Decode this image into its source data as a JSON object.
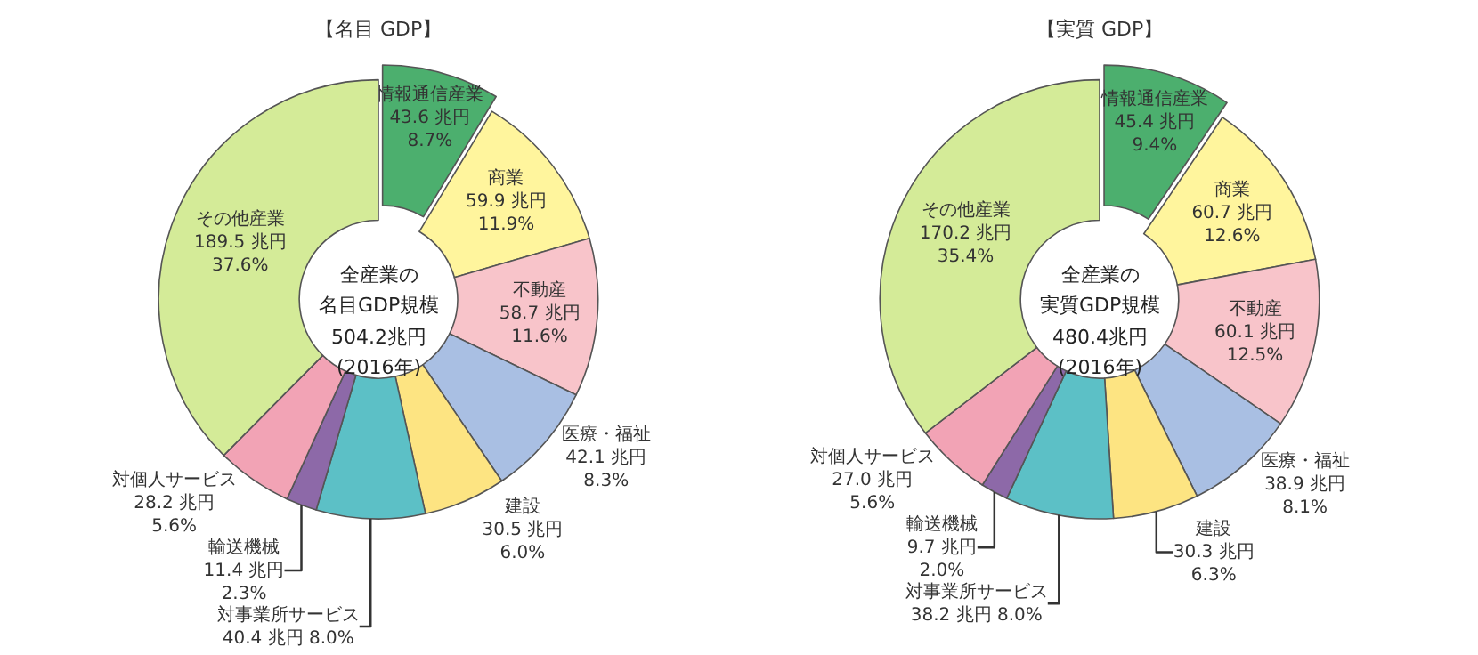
{
  "chart_data": [
    {
      "type": "donut",
      "title": "【名目 GDP】",
      "annotations": [
        "全産業の",
        "名目GDP規模",
        "504.2兆円",
        "(2016年)"
      ],
      "categories": [
        "情報通信産業",
        "商業",
        "不動産",
        "医療・福祉",
        "建設",
        "対事業所サービス",
        "輸送機械",
        "対個人サービス",
        "その他産業"
      ],
      "values": [
        43.6,
        59.9,
        58.7,
        42.1,
        30.5,
        40.4,
        11.4,
        28.2,
        189.5
      ],
      "value_labels": [
        "43.6 兆円\n8.7%",
        "59.9 兆円\n11.9%",
        "58.7 兆円\n11.6%",
        "42.1 兆円\n8.3%",
        "30.5 兆円\n6.0%",
        "40.4 兆円 8.0%",
        "11.4 兆円\n2.3%",
        "28.2 兆円\n5.6%",
        "189.5 兆円\n37.6%"
      ],
      "colors": [
        "#4caf6e",
        "#fff59d",
        "#f8c4ca",
        "#a9bfe3",
        "#fde482",
        "#5cc0c6",
        "#8d69a8",
        "#f2a3b5",
        "#d4eb98"
      ]
    },
    {
      "type": "donut",
      "title": "【実質 GDP】",
      "annotations": [
        "全産業の",
        "実質GDP規模",
        "480.4兆円",
        "(2016年)"
      ],
      "categories": [
        "情報通信産業",
        "商業",
        "不動産",
        "医療・福祉",
        "建設",
        "対事業所サービス",
        "輸送機械",
        "対個人サービス",
        "その他産業"
      ],
      "values": [
        45.4,
        60.7,
        60.1,
        38.9,
        30.3,
        38.2,
        9.7,
        27.0,
        170.2
      ],
      "value_labels": [
        "45.4 兆円\n9.4%",
        "60.7 兆円\n12.6%",
        "60.1 兆円\n12.5%",
        "38.9 兆円\n8.1%",
        "30.3 兆円\n6.3%",
        "38.2 兆円 8.0%",
        "9.7 兆円\n2.0%",
        "27.0 兆円\n5.6%",
        "170.2 兆円\n35.4%"
      ],
      "colors": [
        "#4caf6e",
        "#fff59d",
        "#f8c4ca",
        "#a9bfe3",
        "#fde482",
        "#5cc0c6",
        "#8d69a8",
        "#f2a3b5",
        "#d4eb98"
      ]
    }
  ]
}
